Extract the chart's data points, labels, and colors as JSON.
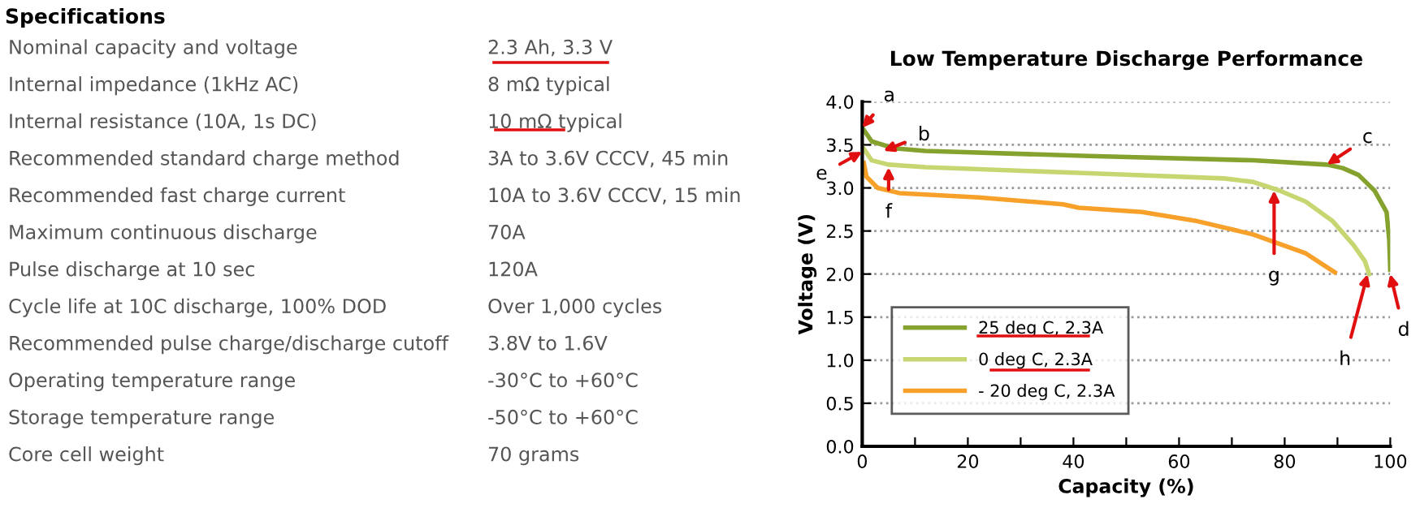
{
  "chart_data": [
    {
      "type": "other",
      "title": "Specifications",
      "annotations": [
        "Nominal capacity and voltage",
        "2.3 Ah, 3.3 V",
        "Internal impedance (1kHz AC)",
        "8 mΩ typical",
        "Internal resistance (10A, 1s DC)",
        "10 mΩ typical",
        "Recommended standard charge method",
        "3A to 3.6V CCCV, 45 min",
        "Recommended fast charge current",
        "10A to 3.6V CCCV, 15 min",
        "Maximum continuous discharge",
        "70A",
        "Pulse discharge at 10 sec",
        "120A",
        "Cycle life at 10C discharge, 100% DOD",
        "Over 1,000 cycles",
        "Recommended pulse charge/discharge cutoff",
        "3.8V to 1.6V",
        "Operating temperature range",
        "-30°C to +60°C",
        "Storage temperature range",
        "-50°C to +60°C",
        "Core cell weight",
        "70 grams"
      ]
    },
    {
      "type": "line",
      "title": "Low Temperature Discharge Performance",
      "xlabel": "Capacity (%)",
      "ylabel": "Voltage (V)",
      "xlim": [
        0,
        100
      ],
      "xticks": [
        0,
        {
          "value": 10,
          "label": null
        },
        20,
        {
          "value": 30,
          "label": null
        },
        40,
        {
          "value": 50,
          "label": null
        },
        60,
        {
          "value": 70,
          "label": null
        },
        80,
        {
          "value": 90,
          "label": null
        },
        100
      ],
      "ylim": [
        0,
        4.0
      ],
      "yticks": [
        {
          "value": 0,
          "label": "0.0"
        },
        0.5,
        {
          "value": 1,
          "label": "1.0"
        },
        1.5,
        {
          "value": 2,
          "label": "2.0"
        },
        2.5,
        {
          "value": 3,
          "label": "3.0"
        },
        3.5,
        {
          "value": 4,
          "label": "4.0"
        }
      ],
      "grid": "y",
      "legend": "bottom left",
      "marker": "none",
      "line_style": "solid",
      "series": [
        {
          "name": "25 deg C, 2.3A",
          "color": "#86a22e",
          "x": [
            0,
            1.8,
            6,
            12,
            43,
            74,
            88,
            91,
            94,
            97,
            99.3,
            99.8,
            100
          ],
          "values": [
            3.7,
            3.54,
            3.46,
            3.43,
            3.37,
            3.32,
            3.27,
            3.23,
            3.15,
            2.97,
            2.72,
            2.4,
            2.05
          ]
        },
        {
          "name": "0 deg C, 2.3A",
          "color": "#c8d672",
          "x": [
            0,
            1.8,
            5,
            12,
            43,
            68.5,
            74,
            79,
            84,
            89,
            93,
            95.2,
            96
          ],
          "values": [
            3.48,
            3.32,
            3.27,
            3.24,
            3.17,
            3.11,
            3.07,
            2.97,
            2.84,
            2.62,
            2.34,
            2.15,
            2.0
          ]
        },
        {
          "name": "- 20 deg C, 2.3A",
          "color": "#f7a02a",
          "x": [
            0.3,
            0.8,
            2.9,
            7,
            22,
            38,
            41,
            53,
            63,
            74,
            84,
            89.5
          ],
          "values": [
            3.29,
            3.13,
            3.0,
            2.94,
            2.89,
            2.81,
            2.77,
            2.72,
            2.62,
            2.46,
            2.24,
            2.02
          ]
        }
      ],
      "annotations": [
        {
          "text": "a",
          "x": 0,
          "y": 3.7
        },
        {
          "text": "b",
          "x": 4,
          "y": 3.43
        },
        {
          "text": "c",
          "x": 88,
          "y": 3.27
        },
        {
          "text": "d",
          "x": 100,
          "y": 2.0
        },
        {
          "text": "e",
          "x": 0,
          "y": 3.42
        },
        {
          "text": "f",
          "x": 5,
          "y": 3.24
        },
        {
          "text": "g",
          "x": 78,
          "y": 2.97
        },
        {
          "text": "h",
          "x": 95.7,
          "y": 2.0
        }
      ]
    }
  ]
}
